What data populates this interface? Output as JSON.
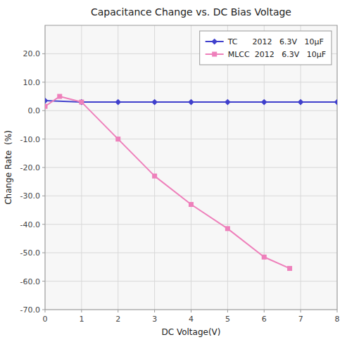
{
  "chart_data": {
    "type": "line",
    "title": "Capacitance Change vs. DC Bias Voltage",
    "x_label": "DC Voltage(V)",
    "y_label": "Change Rate  (%)",
    "xlim": [
      0,
      8
    ],
    "ylim": [
      -70.0,
      30.0
    ],
    "xticks": [
      0,
      1,
      2,
      3,
      4,
      5,
      6,
      7,
      8
    ],
    "yticks": [
      {
        "value": -70.0,
        "label": "-70.0"
      },
      {
        "value": -60.0,
        "label": "-60.0"
      },
      {
        "value": -50.0,
        "label": "-50.0"
      },
      {
        "value": -40.0,
        "label": "-40.0"
      },
      {
        "value": -30.0,
        "label": "-30.0"
      },
      {
        "value": -20.0,
        "label": "-20.0"
      },
      {
        "value": -10.0,
        "label": "-10.0"
      },
      {
        "value": 0.0,
        "label": "0.0"
      },
      {
        "value": 10.0,
        "label": "10.0"
      },
      {
        "value": 20.0,
        "label": "20.0"
      }
    ],
    "grid": true,
    "legend": "upper right",
    "series": [
      {
        "name": "TC      2012   6.3V   10μF",
        "color": "#4040cc",
        "marker": "diamond",
        "x": [
          0.0,
          1.0,
          2.0,
          3.0,
          4.0,
          5.0,
          6.0,
          7.0,
          8.0
        ],
        "values": [
          3.5,
          3.0,
          3.0,
          3.0,
          3.0,
          3.0,
          3.0,
          3.0,
          3.0
        ]
      },
      {
        "name": "MLCC  2012   6.3V   10μF",
        "color": "#ee80bb",
        "marker": "square",
        "x": [
          0.0,
          0.4,
          1.0,
          2.0,
          3.0,
          4.0,
          5.0,
          6.0,
          6.7
        ],
        "values": [
          1.5,
          5.0,
          3.0,
          -10.0,
          -23.0,
          -33.0,
          -41.5,
          -51.5,
          -55.5
        ]
      }
    ]
  }
}
